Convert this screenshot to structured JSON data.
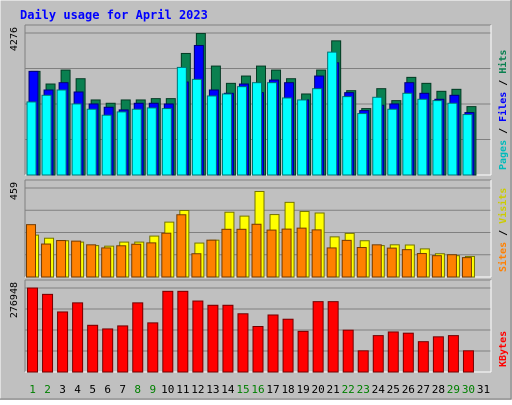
{
  "chart_data": [
    {
      "type": "bar",
      "title": "Daily usage for April 2023",
      "ylabel_parts": [
        "Pages",
        "Files",
        "Hits"
      ],
      "ymax_label": "4276",
      "ylim": [
        0,
        4276
      ],
      "categories": [
        "1",
        "2",
        "3",
        "4",
        "5",
        "6",
        "7",
        "8",
        "9",
        "10",
        "11",
        "12",
        "13",
        "14",
        "15",
        "16",
        "17",
        "18",
        "19",
        "20",
        "21",
        "22",
        "23",
        "24",
        "25",
        "26",
        "27",
        "28",
        "29",
        "30",
        "31"
      ],
      "weekend_days": [
        "1",
        "2",
        "8",
        "9",
        "15",
        "16",
        "22",
        "23",
        "29",
        "30"
      ],
      "series": [
        {
          "name": "Hits",
          "color": "#0a8050",
          "values": [
            3120,
            2740,
            3160,
            2900,
            2260,
            2160,
            2260,
            2260,
            2300,
            2300,
            3660,
            4260,
            3280,
            2760,
            2980,
            3280,
            3160,
            2900,
            2440,
            3160,
            4040,
            2540,
            2000,
            2600,
            2240,
            2940,
            2760,
            2520,
            2580,
            2060,
            0
          ]
        },
        {
          "name": "Files",
          "color": "#0000ff",
          "values": [
            3120,
            2560,
            2780,
            2500,
            2140,
            2040,
            1960,
            2160,
            2160,
            2140,
            2800,
            3900,
            2560,
            2460,
            2740,
            2480,
            2860,
            2780,
            2260,
            2980,
            3380,
            2480,
            1940,
            2100,
            2140,
            2780,
            2460,
            2280,
            2400,
            1880,
            0
          ]
        },
        {
          "name": "Pages",
          "color": "#00ffff",
          "values": [
            2200,
            2400,
            2560,
            2140,
            1980,
            1800,
            1900,
            1980,
            2020,
            2000,
            3240,
            2880,
            2380,
            2440,
            2660,
            2780,
            2780,
            2320,
            2260,
            2600,
            3700,
            2360,
            1850,
            2340,
            1980,
            2460,
            2280,
            2240,
            2160,
            1820,
            0
          ]
        }
      ]
    },
    {
      "type": "bar",
      "ylabel_parts": [
        "Sites",
        "Visits"
      ],
      "ymax_label": "459",
      "ylim": [
        0,
        459
      ],
      "categories": [
        "1",
        "2",
        "3",
        "4",
        "5",
        "6",
        "7",
        "8",
        "9",
        "10",
        "11",
        "12",
        "13",
        "14",
        "15",
        "16",
        "17",
        "18",
        "19",
        "20",
        "21",
        "22",
        "23",
        "24",
        "25",
        "26",
        "27",
        "28",
        "29",
        "30",
        "31"
      ],
      "series": [
        {
          "name": "Visits",
          "color": "#ffff00",
          "values": [
            216,
            200,
            187,
            180,
            162,
            159,
            180,
            180,
            211,
            283,
            343,
            175,
            190,
            334,
            314,
            441,
            322,
            385,
            338,
            330,
            207,
            225,
            187,
            162,
            166,
            165,
            145,
            120,
            110,
            106,
            0
          ]
        },
        {
          "name": "Sites",
          "color": "#ff8000",
          "values": [
            270,
            170,
            188,
            185,
            166,
            150,
            161,
            169,
            176,
            226,
            321,
            120,
            190,
            246,
            246,
            272,
            242,
            247,
            252,
            243,
            150,
            189,
            152,
            166,
            149,
            141,
            121,
            110,
            115,
            100,
            0
          ]
        }
      ]
    },
    {
      "type": "bar",
      "ylabel_parts": [
        "KBytes"
      ],
      "ymax_label": "276948",
      "ylim": [
        0,
        276948
      ],
      "categories": [
        "1",
        "2",
        "3",
        "4",
        "5",
        "6",
        "7",
        "8",
        "9",
        "10",
        "11",
        "12",
        "13",
        "14",
        "15",
        "16",
        "17",
        "18",
        "19",
        "20",
        "21",
        "22",
        "23",
        "24",
        "25",
        "26",
        "27",
        "28",
        "29",
        "30",
        "31"
      ],
      "series": [
        {
          "name": "KBytes",
          "color": "#ff0000",
          "values": [
            276948,
            256000,
            198000,
            228000,
            154000,
            142000,
            152000,
            228000,
            162000,
            266000,
            266000,
            234000,
            220000,
            220000,
            192000,
            150000,
            188000,
            174000,
            134000,
            232000,
            232000,
            138000,
            70000,
            120000,
            132000,
            128000,
            100000,
            116000,
            120000,
            70000,
            0
          ]
        }
      ]
    }
  ]
}
